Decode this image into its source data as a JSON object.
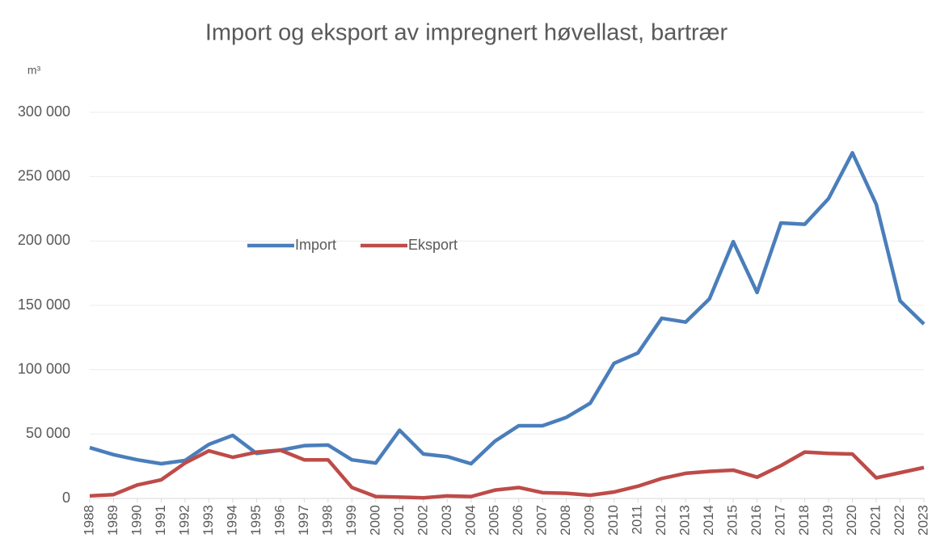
{
  "chart_data": {
    "type": "line",
    "title": "Import og eksport av impregnert høvellast, bartrær",
    "y_label": "m³",
    "categories": [
      "1988",
      "1989",
      "1990",
      "1991",
      "1992",
      "1993",
      "1994",
      "1995",
      "1996",
      "1997",
      "1998",
      "1999",
      "2000",
      "2001",
      "2002",
      "2003",
      "2004",
      "2005",
      "2006",
      "2007",
      "2008",
      "2009",
      "2010",
      "2011",
      "2012",
      "2013",
      "2014",
      "2015",
      "2016",
      "2017",
      "2018",
      "2019",
      "2020",
      "2021",
      "2022",
      "2023"
    ],
    "series": [
      {
        "name": "Import",
        "color": "#4a7ebb",
        "values": [
          39500,
          34000,
          30000,
          27000,
          29500,
          42000,
          49000,
          35000,
          37500,
          41000,
          41500,
          30000,
          27500,
          53000,
          34500,
          32500,
          27000,
          44500,
          56500,
          56500,
          63000,
          74000,
          105000,
          113000,
          140000,
          137000,
          155000,
          199500,
          160000,
          214000,
          213000,
          233000,
          268500,
          228500,
          153500,
          135500
        ]
      },
      {
        "name": "Eksport",
        "color": "#be4b48",
        "values": [
          2000,
          3000,
          10500,
          14500,
          27500,
          37000,
          32000,
          36000,
          37500,
          30000,
          30000,
          8500,
          1500,
          1000,
          500,
          2000,
          1500,
          6500,
          8500,
          4500,
          4000,
          2500,
          5000,
          9500,
          15500,
          19500,
          21000,
          22000,
          16500,
          25500,
          36000,
          35000,
          34500,
          16000,
          20000,
          24000
        ]
      }
    ],
    "ylim": [
      0,
      300000
    ],
    "yticks": [
      0,
      {
        "value": 50000,
        "label": "50 000"
      },
      {
        "value": 100000,
        "label": "100 000"
      },
      {
        "value": 150000,
        "label": "150 000"
      },
      {
        "value": 200000,
        "label": "200 000"
      },
      {
        "value": 250000,
        "label": "250 000"
      },
      {
        "value": 300000,
        "label": "300 000"
      }
    ],
    "grid": true,
    "legend": "center-left"
  }
}
